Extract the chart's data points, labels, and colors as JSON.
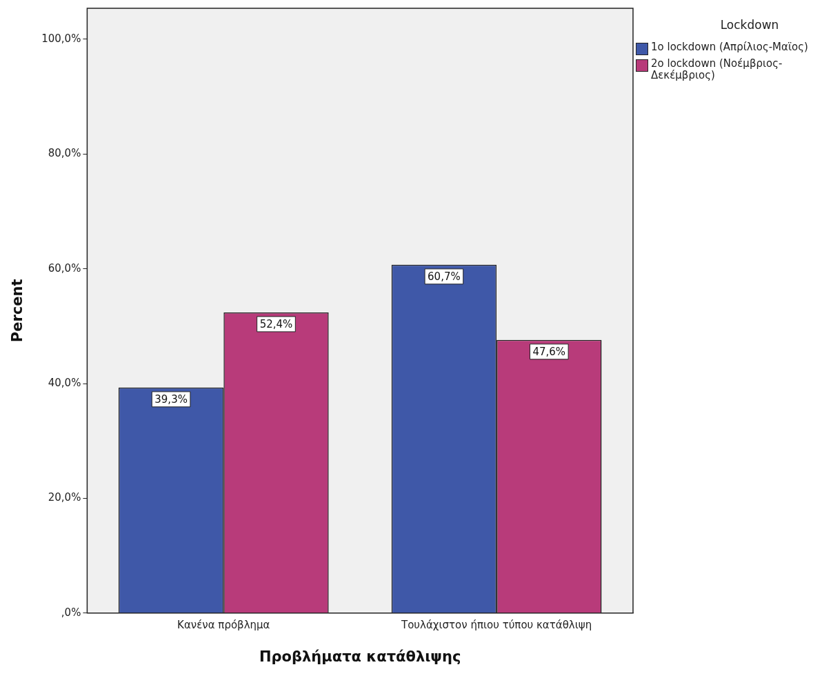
{
  "chart_data": {
    "type": "bar",
    "xlabel": "Προβλήματα κατάθλιψης",
    "ylabel": "Percent",
    "legend_title": "Lockdown",
    "legend": "top right",
    "categories": [
      "Κανένα πρόβλημα",
      "Τουλάχιστον ήπιου τύπου κατάθλιψη"
    ],
    "series": [
      {
        "name": "1o lockdown (Απρίλιος-Μαϊος)",
        "color": "#3f58a8",
        "values": [
          39.3,
          60.7
        ],
        "value_labels": [
          "39,3%",
          "60,7%"
        ]
      },
      {
        "name": "2o lockdown (Νοέμβριος-Δεκέμβριος)",
        "color": "#b83b7a",
        "values": [
          52.4,
          47.6
        ],
        "value_labels": [
          "52,4%",
          "47,6%"
        ]
      }
    ],
    "ylim": [
      0,
      105.4
    ],
    "yticks": [
      {
        "value": 0,
        "label": ",0%"
      },
      {
        "value": 20,
        "label": "20,0%"
      },
      {
        "value": 40,
        "label": "40,0%"
      },
      {
        "value": 60,
        "label": "60,0%"
      },
      {
        "value": 80,
        "label": "80,0%"
      },
      {
        "value": 100,
        "label": "100,0%"
      }
    ],
    "grid": false
  }
}
